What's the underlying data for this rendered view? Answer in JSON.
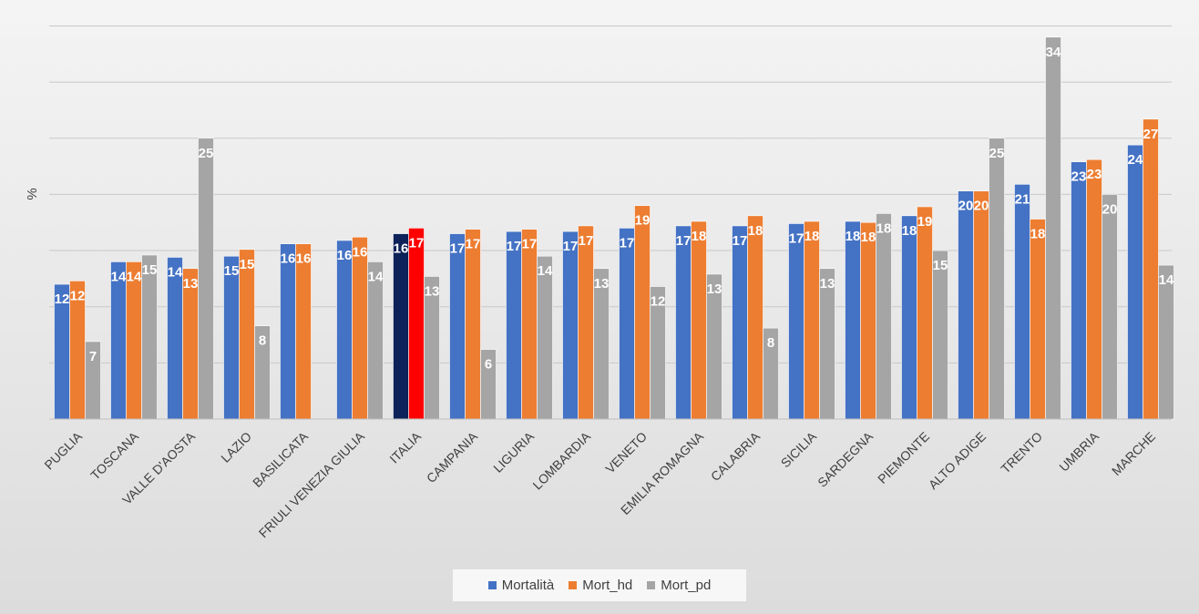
{
  "chart_data": {
    "type": "bar",
    "title": "",
    "xlabel": "",
    "ylabel": "%",
    "ylim": [
      0,
      34
    ],
    "grid": true,
    "legend_placement": "bottom",
    "categories": [
      "PUGLIA",
      "TOSCANA",
      "VALLE D'AOSTA",
      "LAZIO",
      "BASILICATA",
      "FRIULI VENEZIA GIULIA",
      "ITALIA",
      "CAMPANIA",
      "LIGURIA",
      "LOMBARDIA",
      "VENETO",
      "EMILIA ROMAGNA",
      "CALABRIA",
      "SICILIA",
      "SARDEGNA",
      "PIEMONTE",
      "ALTO ADIGE",
      "TRENTO",
      "UMBRIA",
      "MARCHE"
    ],
    "series": [
      {
        "name": "Mortalità",
        "color": "#4472c4",
        "values": [
          12,
          14,
          14.4,
          14.5,
          15.6,
          15.9,
          16.5,
          16.5,
          16.7,
          16.7,
          17,
          17.2,
          17.2,
          17.4,
          17.6,
          18.1,
          20.3,
          20.9,
          22.9,
          24.4
        ],
        "labels": [
          "12",
          "14",
          "14",
          "15",
          "16",
          "16",
          "16",
          "17",
          "17",
          "17",
          "17",
          "17",
          "17",
          "17",
          "18",
          "18",
          "20",
          "21",
          "23",
          "24"
        ]
      },
      {
        "name": "Mort_hd",
        "color": "#ed7d31",
        "values": [
          12.3,
          14,
          13.4,
          15.1,
          15.6,
          16.2,
          17,
          16.9,
          16.9,
          17.2,
          19,
          17.6,
          18.1,
          17.6,
          17.5,
          18.9,
          20.3,
          17.8,
          23.1,
          26.7
        ],
        "labels": [
          "12",
          "14",
          "13",
          "15",
          "16",
          "16",
          "17",
          "17",
          "17",
          "17",
          "19",
          "18",
          "18",
          "18",
          "18",
          "19",
          "20",
          "18",
          "23",
          "27"
        ]
      },
      {
        "name": "Mort_pd",
        "color": "#a5a5a5",
        "values": [
          6.9,
          14.6,
          25,
          8.3,
          null,
          14,
          12.7,
          6.2,
          14.5,
          13.4,
          11.8,
          12.9,
          8.1,
          13.4,
          18.3,
          15,
          25,
          34,
          20,
          13.7
        ],
        "labels": [
          "7",
          "15",
          "25",
          "8",
          "",
          "14",
          "13",
          "6",
          "14",
          "13",
          "12",
          "13",
          "8",
          "13",
          "18",
          "15",
          "25",
          "34",
          "20",
          "14"
        ]
      }
    ],
    "highlight": {
      "category": "ITALIA",
      "colors": {
        "Mortalità": "#0c2258",
        "Mort_hd": "#ff0000"
      }
    }
  }
}
